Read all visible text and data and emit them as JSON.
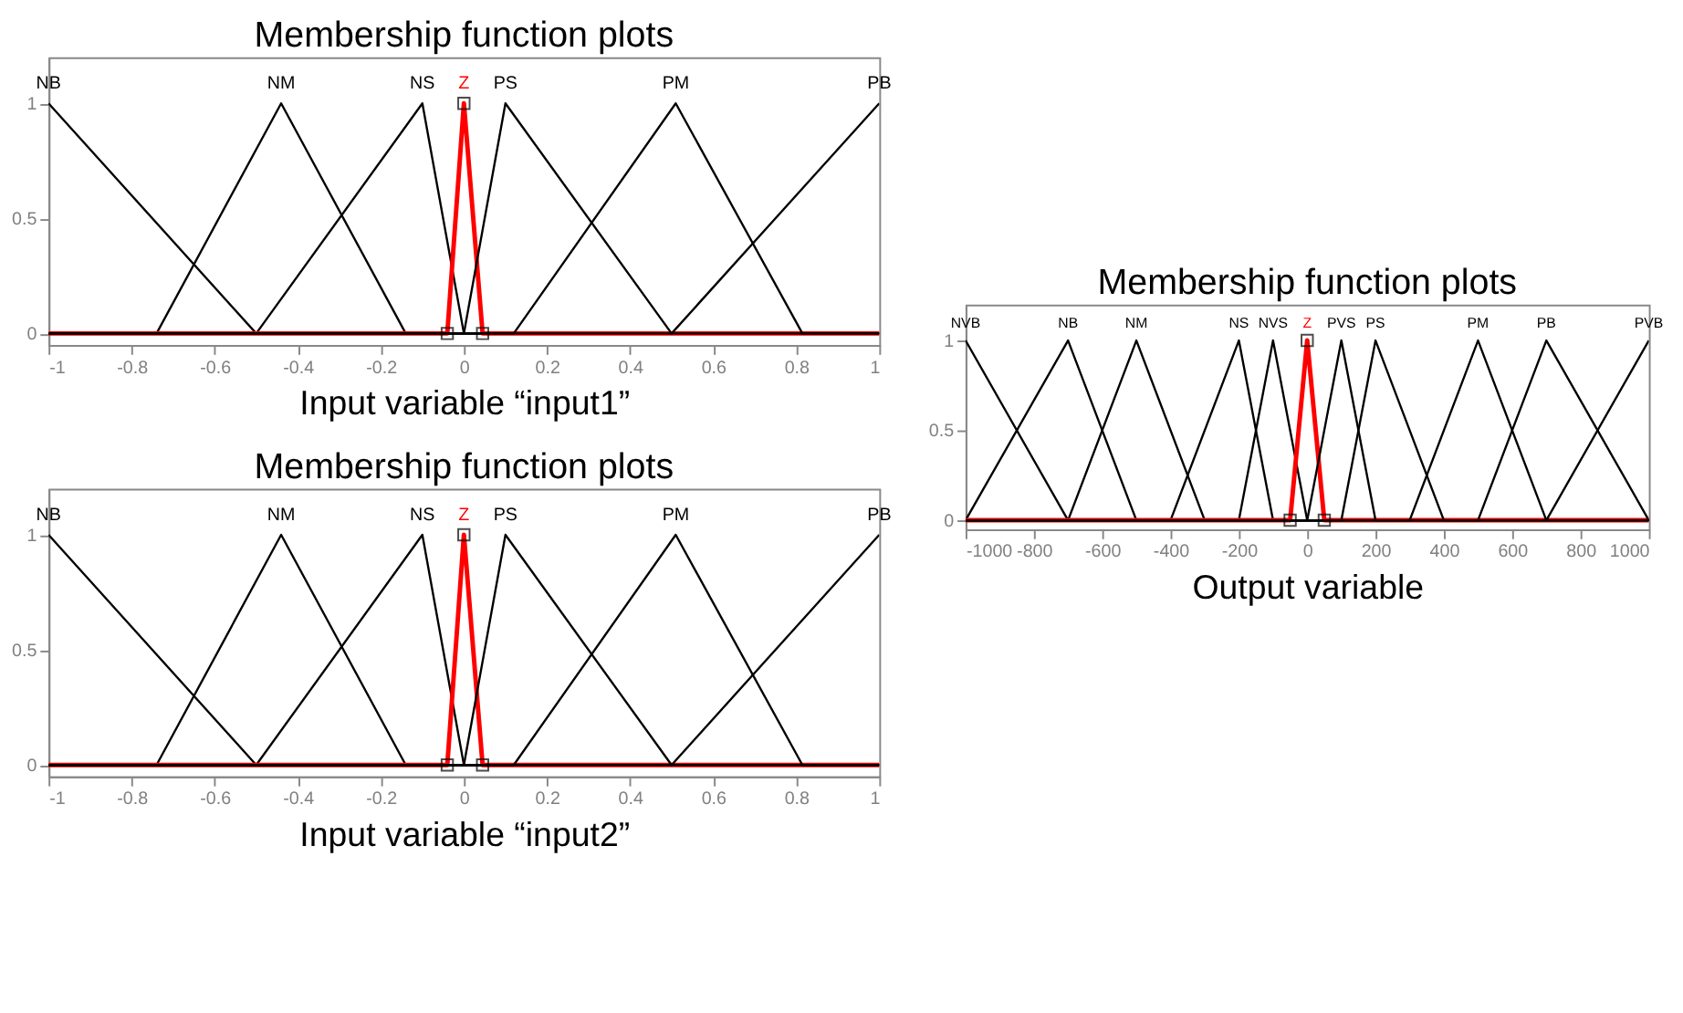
{
  "chart_data": [
    {
      "type": "line",
      "title": "Membership function plots",
      "xlabel": "Input variable “input1”",
      "xlim": [
        -1,
        1
      ],
      "xticks": [
        -1,
        -0.8,
        -0.6,
        -0.4,
        -0.2,
        0,
        0.2,
        0.4,
        0.6,
        0.8,
        1
      ],
      "ylim": [
        -0.05,
        1.2
      ],
      "yticks": [
        0,
        0.5,
        1
      ],
      "series": [
        {
          "name": "NB",
          "color": "#000000",
          "x": [
            -1,
            -0.5,
            1
          ],
          "values": [
            1,
            0,
            0
          ]
        },
        {
          "name": "NM",
          "color": "#000000",
          "x": [
            -1,
            -0.74,
            -0.44,
            -0.14,
            1
          ],
          "values": [
            0,
            0,
            1,
            0,
            0
          ]
        },
        {
          "name": "NS",
          "color": "#000000",
          "x": [
            -1,
            -0.5,
            -0.1,
            0,
            1
          ],
          "values": [
            0,
            0,
            1,
            0,
            0
          ]
        },
        {
          "name": "Z",
          "color": "#ff0000",
          "marker": "square",
          "x": [
            -1,
            -0.04,
            0,
            0.045,
            1
          ],
          "values": [
            0,
            0,
            1,
            0,
            0
          ]
        },
        {
          "name": "PS",
          "color": "#000000",
          "x": [
            -1,
            0,
            0.1,
            0.5,
            1
          ],
          "values": [
            0,
            0,
            1,
            0,
            0
          ]
        },
        {
          "name": "PM",
          "color": "#000000",
          "x": [
            -1,
            0.12,
            0.51,
            0.815,
            1
          ],
          "values": [
            0,
            0,
            1,
            0,
            0
          ]
        },
        {
          "name": "PB",
          "color": "#000000",
          "x": [
            -1,
            0.5,
            1
          ],
          "values": [
            0,
            0,
            1
          ]
        }
      ]
    },
    {
      "type": "line",
      "title": "Membership function plots",
      "xlabel": "Input variable “input2”",
      "xlim": [
        -1,
        1
      ],
      "xticks": [
        -1,
        -0.8,
        -0.6,
        -0.4,
        -0.2,
        0,
        0.2,
        0.4,
        0.6,
        0.8,
        1
      ],
      "ylim": [
        -0.05,
        1.2
      ],
      "yticks": [
        0,
        0.5,
        1
      ],
      "series": [
        {
          "name": "NB",
          "color": "#000000",
          "x": [
            -1,
            -0.5,
            1
          ],
          "values": [
            1,
            0,
            0
          ]
        },
        {
          "name": "NM",
          "color": "#000000",
          "x": [
            -1,
            -0.74,
            -0.44,
            -0.14,
            1
          ],
          "values": [
            0,
            0,
            1,
            0,
            0
          ]
        },
        {
          "name": "NS",
          "color": "#000000",
          "x": [
            -1,
            -0.5,
            -0.1,
            0,
            1
          ],
          "values": [
            0,
            0,
            1,
            0,
            0
          ]
        },
        {
          "name": "Z",
          "color": "#ff0000",
          "marker": "square",
          "x": [
            -1,
            -0.04,
            0,
            0.045,
            1
          ],
          "values": [
            0,
            0,
            1,
            0,
            0
          ]
        },
        {
          "name": "PS",
          "color": "#000000",
          "x": [
            -1,
            0,
            0.1,
            0.5,
            1
          ],
          "values": [
            0,
            0,
            1,
            0,
            0
          ]
        },
        {
          "name": "PM",
          "color": "#000000",
          "x": [
            -1,
            0.12,
            0.51,
            0.815,
            1
          ],
          "values": [
            0,
            0,
            1,
            0,
            0
          ]
        },
        {
          "name": "PB",
          "color": "#000000",
          "x": [
            -1,
            0.5,
            1
          ],
          "values": [
            0,
            0,
            1
          ]
        }
      ]
    },
    {
      "type": "line",
      "title": "Membership function plots",
      "xlabel": "Output variable",
      "xlim": [
        -1000,
        1000
      ],
      "xticks": [
        -1000,
        -800,
        -600,
        -400,
        -200,
        0,
        200,
        400,
        600,
        800,
        1000
      ],
      "ylim": [
        -0.05,
        1.2
      ],
      "yticks": [
        0,
        0.5,
        1
      ],
      "series": [
        {
          "name": "NVB",
          "color": "#000000",
          "x": [
            -1000,
            -700,
            1000
          ],
          "values": [
            1,
            0,
            0
          ]
        },
        {
          "name": "NB",
          "color": "#000000",
          "x": [
            -1000,
            -700,
            -500,
            1000
          ],
          "values": [
            0,
            1,
            0,
            0
          ]
        },
        {
          "name": "NM",
          "color": "#000000",
          "x": [
            -1000,
            -700,
            -500,
            -300,
            1000
          ],
          "values": [
            0,
            0,
            1,
            0,
            0
          ]
        },
        {
          "name": "NS",
          "color": "#000000",
          "x": [
            -1000,
            -400,
            -200,
            -100,
            1000
          ],
          "values": [
            0,
            0,
            1,
            0,
            0
          ]
        },
        {
          "name": "NVS",
          "color": "#000000",
          "x": [
            -1000,
            -200,
            -100,
            0,
            1000
          ],
          "values": [
            0,
            0,
            1,
            0,
            0
          ]
        },
        {
          "name": "Z",
          "color": "#ff0000",
          "marker": "square",
          "x": [
            -1000,
            -50,
            0,
            50,
            1000
          ],
          "values": [
            0,
            0,
            1,
            0,
            0
          ]
        },
        {
          "name": "PVS",
          "color": "#000000",
          "x": [
            -1000,
            0,
            100,
            200,
            1000
          ],
          "values": [
            0,
            0,
            1,
            0,
            0
          ]
        },
        {
          "name": "PS",
          "color": "#000000",
          "x": [
            -1000,
            100,
            200,
            400,
            1000
          ],
          "values": [
            0,
            0,
            1,
            0,
            0
          ]
        },
        {
          "name": "PM",
          "color": "#000000",
          "x": [
            -1000,
            300,
            500,
            700,
            1000
          ],
          "values": [
            0,
            0,
            1,
            0,
            0
          ]
        },
        {
          "name": "PB",
          "color": "#000000",
          "x": [
            -1000,
            500,
            700,
            1000
          ],
          "values": [
            0,
            0,
            1,
            0
          ]
        },
        {
          "name": "PVB",
          "color": "#000000",
          "x": [
            -1000,
            700,
            1000
          ],
          "values": [
            0,
            0,
            1
          ]
        }
      ]
    }
  ]
}
